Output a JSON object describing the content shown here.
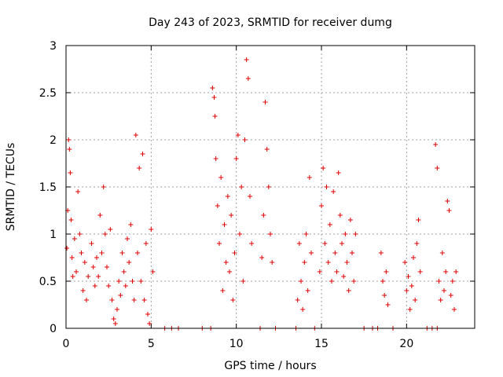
{
  "chart_data": {
    "type": "scatter",
    "title": "Day 243 of 2023, SRMTID for receiver dumg",
    "xlabel": "GPS time / hours",
    "ylabel": "SRMTID / TECUs",
    "xlim": [
      0,
      24
    ],
    "ylim": [
      0,
      3
    ],
    "xticks": [
      "0",
      "5",
      "10",
      "15",
      "20"
    ],
    "xtick_values": [
      0,
      5,
      10,
      15,
      20
    ],
    "yticks": [
      "0",
      "0.5",
      "1",
      "1.5",
      "2",
      "2.5",
      "3"
    ],
    "ytick_values": [
      0,
      0.5,
      1,
      1.5,
      2,
      2.5,
      3
    ],
    "grid": true,
    "marker": "+",
    "color": "#dd0000",
    "series": [
      {
        "name": "SRMTID",
        "points": [
          [
            0.05,
            0.85
          ],
          [
            0.1,
            1.25
          ],
          [
            0.15,
            2.0
          ],
          [
            0.2,
            1.9
          ],
          [
            0.25,
            1.65
          ],
          [
            0.3,
            1.15
          ],
          [
            0.35,
            0.75
          ],
          [
            0.4,
            0.55
          ],
          [
            0.5,
            0.95
          ],
          [
            0.6,
            0.6
          ],
          [
            0.7,
            1.45
          ],
          [
            0.8,
            1.0
          ],
          [
            0.9,
            0.8
          ],
          [
            1.0,
            0.4
          ],
          [
            1.1,
            0.7
          ],
          [
            1.2,
            0.3
          ],
          [
            1.3,
            0.55
          ],
          [
            1.5,
            0.9
          ],
          [
            1.6,
            0.65
          ],
          [
            1.7,
            0.45
          ],
          [
            1.8,
            0.75
          ],
          [
            1.9,
            0.55
          ],
          [
            2.0,
            1.2
          ],
          [
            2.1,
            0.8
          ],
          [
            2.2,
            1.5
          ],
          [
            2.3,
            1.0
          ],
          [
            2.4,
            0.65
          ],
          [
            2.5,
            0.45
          ],
          [
            2.6,
            1.05
          ],
          [
            2.7,
            0.3
          ],
          [
            2.8,
            0.1
          ],
          [
            2.9,
            0.05
          ],
          [
            3.0,
            0.2
          ],
          [
            3.1,
            0.5
          ],
          [
            3.2,
            0.35
          ],
          [
            3.3,
            0.8
          ],
          [
            3.4,
            0.6
          ],
          [
            3.5,
            0.45
          ],
          [
            3.6,
            0.95
          ],
          [
            3.7,
            0.7
          ],
          [
            3.8,
            1.1
          ],
          [
            3.9,
            0.5
          ],
          [
            4.0,
            0.3
          ],
          [
            4.1,
            2.05
          ],
          [
            4.2,
            0.8
          ],
          [
            4.3,
            1.7
          ],
          [
            4.4,
            0.5
          ],
          [
            4.5,
            1.85
          ],
          [
            4.6,
            0.3
          ],
          [
            4.7,
            0.9
          ],
          [
            4.8,
            0.15
          ],
          [
            4.9,
            0.05
          ],
          [
            5.0,
            1.05
          ],
          [
            5.1,
            0.6
          ],
          [
            8.6,
            2.55
          ],
          [
            8.7,
            2.45
          ],
          [
            8.75,
            2.25
          ],
          [
            8.8,
            1.8
          ],
          [
            8.9,
            1.3
          ],
          [
            9.0,
            0.9
          ],
          [
            9.1,
            1.6
          ],
          [
            9.2,
            0.4
          ],
          [
            9.3,
            1.1
          ],
          [
            9.4,
            0.7
          ],
          [
            9.5,
            1.4
          ],
          [
            9.6,
            0.6
          ],
          [
            9.7,
            1.2
          ],
          [
            9.8,
            0.3
          ],
          [
            9.9,
            0.8
          ],
          [
            10.0,
            1.8
          ],
          [
            10.1,
            2.05
          ],
          [
            10.2,
            1.0
          ],
          [
            10.3,
            1.5
          ],
          [
            10.4,
            0.5
          ],
          [
            10.5,
            2.0
          ],
          [
            10.6,
            2.85
          ],
          [
            10.7,
            2.65
          ],
          [
            10.8,
            1.4
          ],
          [
            10.9,
            0.9
          ],
          [
            11.5,
            0.75
          ],
          [
            11.6,
            1.2
          ],
          [
            11.7,
            2.4
          ],
          [
            11.8,
            1.9
          ],
          [
            11.9,
            1.5
          ],
          [
            12.0,
            1.0
          ],
          [
            12.1,
            0.7
          ],
          [
            13.6,
            0.3
          ],
          [
            13.7,
            0.9
          ],
          [
            13.8,
            0.5
          ],
          [
            13.9,
            0.2
          ],
          [
            14.0,
            0.7
          ],
          [
            14.1,
            1.0
          ],
          [
            14.2,
            0.4
          ],
          [
            14.3,
            1.6
          ],
          [
            14.4,
            0.8
          ],
          [
            14.9,
            0.6
          ],
          [
            15.0,
            1.3
          ],
          [
            15.1,
            1.7
          ],
          [
            15.2,
            0.9
          ],
          [
            15.3,
            1.5
          ],
          [
            15.4,
            0.7
          ],
          [
            15.5,
            1.1
          ],
          [
            15.6,
            0.5
          ],
          [
            15.7,
            1.45
          ],
          [
            15.8,
            0.8
          ],
          [
            15.9,
            0.6
          ],
          [
            16.0,
            1.65
          ],
          [
            16.1,
            1.2
          ],
          [
            16.2,
            0.9
          ],
          [
            16.3,
            0.55
          ],
          [
            16.4,
            1.0
          ],
          [
            16.5,
            0.7
          ],
          [
            16.6,
            0.4
          ],
          [
            16.7,
            1.15
          ],
          [
            16.8,
            0.8
          ],
          [
            16.9,
            0.5
          ],
          [
            17.0,
            1.0
          ],
          [
            18.5,
            0.8
          ],
          [
            18.6,
            0.5
          ],
          [
            18.7,
            0.35
          ],
          [
            18.8,
            0.6
          ],
          [
            18.9,
            0.25
          ],
          [
            19.9,
            0.7
          ],
          [
            20.0,
            0.4
          ],
          [
            20.1,
            0.55
          ],
          [
            20.2,
            0.2
          ],
          [
            20.3,
            0.45
          ],
          [
            20.4,
            0.75
          ],
          [
            20.5,
            0.3
          ],
          [
            20.6,
            0.9
          ],
          [
            20.7,
            1.15
          ],
          [
            20.8,
            0.6
          ],
          [
            21.7,
            1.95
          ],
          [
            21.8,
            1.7
          ],
          [
            21.9,
            0.5
          ],
          [
            22.0,
            0.3
          ],
          [
            22.1,
            0.8
          ],
          [
            22.2,
            0.4
          ],
          [
            22.3,
            0.6
          ],
          [
            22.4,
            1.35
          ],
          [
            22.5,
            1.25
          ],
          [
            22.6,
            0.35
          ],
          [
            22.7,
            0.5
          ],
          [
            22.8,
            0.2
          ],
          [
            22.9,
            0.6
          ],
          [
            5.8,
            0.0
          ],
          [
            6.2,
            0.0
          ],
          [
            6.6,
            0.0
          ],
          [
            8.0,
            0.0
          ],
          [
            8.5,
            0.0
          ],
          [
            11.4,
            0.0
          ],
          [
            12.3,
            0.0
          ],
          [
            13.5,
            0.0
          ],
          [
            14.6,
            0.0
          ],
          [
            17.5,
            0.0
          ],
          [
            18.0,
            0.0
          ],
          [
            18.3,
            0.0
          ],
          [
            19.2,
            0.0
          ],
          [
            21.2,
            0.0
          ],
          [
            21.5,
            0.0
          ],
          [
            21.8,
            0.0
          ]
        ]
      }
    ]
  }
}
